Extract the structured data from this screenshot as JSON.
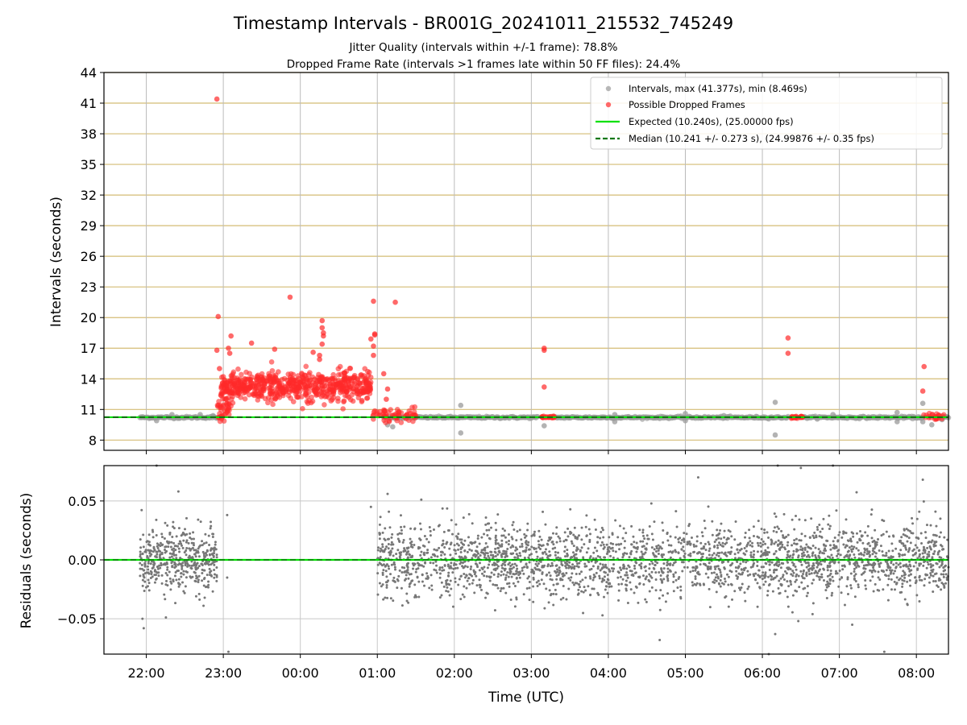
{
  "figure": {
    "title": "Timestamp Intervals - BR001G_20241011_215532_745249",
    "subtitle_line1": "Jitter Quality (intervals within +/-1 frame): 78.8%",
    "subtitle_line2": "Dropped Frame Rate (intervals >1 frames late within 50 FF files): 24.4%"
  },
  "chart_data": [
    {
      "type": "scatter",
      "panel": "top",
      "ylabel": "Intervals (seconds)",
      "ylim": [
        7,
        44
      ],
      "yticks": [
        8,
        11,
        14,
        17,
        20,
        23,
        26,
        29,
        32,
        35,
        38,
        41,
        44
      ],
      "ytick_labels": [
        "8",
        "11",
        "14",
        "17",
        "20",
        "23",
        "26",
        "29",
        "32",
        "35",
        "38",
        "41",
        "44"
      ],
      "xlim": [
        "21:27",
        "08:25"
      ],
      "grid": true,
      "horizontal_grid_color": "#d4bc74",
      "vertical_grid_color": "#bbbbbb",
      "legend_position": "top-right",
      "legend": [
        {
          "label": "Intervals, max (41.377s), min (8.469s)",
          "kind": "marker",
          "color": "#9a9a9a"
        },
        {
          "label": "Possible Dropped Frames",
          "kind": "marker",
          "color": "#ff2a2a"
        },
        {
          "label": "Expected (10.240s), (25.00000 fps)",
          "kind": "line",
          "color": "#00e000"
        },
        {
          "label": "Median (10.241 +/- 0.273 s), (24.99876 +/- 0.35 fps)",
          "kind": "dashed",
          "color": "#117711"
        }
      ],
      "expected_interval": 10.24,
      "median_interval": 10.241,
      "series": [
        {
          "name": "Intervals, max (41.377s), min (8.469s)",
          "color": "#9a9a9a",
          "segments": [
            [
              "21:55",
              "22:55",
              10.22
            ],
            [
              "01:05",
              "03:05",
              10.22
            ],
            [
              "03:18",
              "06:20",
              10.22
            ],
            [
              "06:32",
              "08:05",
              10.22
            ],
            [
              "08:20",
              "08:25",
              10.22
            ]
          ],
          "points": [
            [
              "22:08",
              9.9
            ],
            [
              "22:20",
              10.5
            ],
            [
              "22:42",
              10.5
            ],
            [
              "22:52",
              10.4
            ],
            [
              "01:08",
              9.5
            ],
            [
              "01:12",
              9.3
            ],
            [
              "01:15",
              10.4
            ],
            [
              "02:05",
              11.4
            ],
            [
              "02:05",
              8.7
            ],
            [
              "03:10",
              9.4
            ],
            [
              "04:05",
              9.8
            ],
            [
              "04:05",
              10.5
            ],
            [
              "05:00",
              9.9
            ],
            [
              "05:00",
              10.6
            ],
            [
              "05:30",
              10.4
            ],
            [
              "06:10",
              11.7
            ],
            [
              "06:10",
              8.5
            ],
            [
              "06:55",
              10.5
            ],
            [
              "07:45",
              10.7
            ],
            [
              "07:45",
              9.8
            ],
            [
              "08:05",
              11.6
            ],
            [
              "08:05",
              9.8
            ],
            [
              "08:12",
              9.5
            ],
            [
              "08:20",
              10.0
            ]
          ]
        },
        {
          "name": "Possible Dropped Frames",
          "color": "#ff2a2a",
          "clusters": [
            {
              "from": "22:58",
              "to": "00:55",
              "mean": 13.2,
              "spread": 0.75,
              "count": 620
            },
            {
              "from": "22:55",
              "to": "23:05",
              "mean": 11.0,
              "spread": 0.6,
              "count": 40
            },
            {
              "from": "00:55",
              "to": "01:30",
              "mean": 10.5,
              "spread": 0.35,
              "count": 60
            },
            {
              "from": "03:08",
              "to": "03:18",
              "mean": 10.25,
              "spread": 0.05,
              "count": 25
            },
            {
              "from": "06:22",
              "to": "06:32",
              "mean": 10.25,
              "spread": 0.05,
              "count": 25
            },
            {
              "from": "08:05",
              "to": "08:22",
              "mean": 10.3,
              "spread": 0.2,
              "count": 25
            }
          ],
          "points": [
            [
              "22:55",
              41.4
            ],
            [
              "22:56",
              20.1
            ],
            [
              "22:55",
              16.8
            ],
            [
              "22:57",
              15.0
            ],
            [
              "23:04",
              17.0
            ],
            [
              "23:06",
              18.2
            ],
            [
              "23:05",
              16.5
            ],
            [
              "23:22",
              17.5
            ],
            [
              "23:40",
              16.9
            ],
            [
              "23:52",
              22.0
            ],
            [
              "00:10",
              16.6
            ],
            [
              "00:15",
              16.3
            ],
            [
              "00:17",
              19.7
            ],
            [
              "00:17",
              19.0
            ],
            [
              "00:18",
              18.5
            ],
            [
              "00:18",
              18.2
            ],
            [
              "00:17",
              17.4
            ],
            [
              "00:15",
              15.9
            ],
            [
              "00:55",
              17.9
            ],
            [
              "00:58",
              18.4
            ],
            [
              "00:57",
              16.3
            ],
            [
              "00:57",
              21.6
            ],
            [
              "00:57",
              17.2
            ],
            [
              "00:58",
              18.3
            ],
            [
              "01:05",
              14.5
            ],
            [
              "01:08",
              13.0
            ],
            [
              "01:14",
              21.5
            ],
            [
              "01:07",
              12.0
            ],
            [
              "03:10",
              17.0
            ],
            [
              "03:10",
              16.8
            ],
            [
              "03:10",
              13.2
            ],
            [
              "06:20",
              18.0
            ],
            [
              "06:20",
              16.5
            ],
            [
              "08:06",
              15.2
            ],
            [
              "08:05",
              12.8
            ]
          ]
        }
      ]
    },
    {
      "type": "scatter",
      "panel": "bottom",
      "ylabel": "Residuals (seconds)",
      "xlabel": "Time (UTC)",
      "ylim": [
        -0.08,
        0.08
      ],
      "yticks": [
        -0.05,
        0.0,
        0.05
      ],
      "ytick_labels": [
        "−0.05",
        "0.00",
        "0.05"
      ],
      "xlim": [
        "21:27",
        "08:25"
      ],
      "xticks": [
        "22:00",
        "23:00",
        "00:00",
        "01:00",
        "02:00",
        "03:00",
        "04:00",
        "05:00",
        "06:00",
        "07:00",
        "08:00"
      ],
      "xtick_labels": [
        "22:00",
        "23:00",
        "00:00",
        "01:00",
        "02:00",
        "03:00",
        "04:00",
        "05:00",
        "06:00",
        "07:00",
        "08:00"
      ],
      "grid": true,
      "grid_color": "#c8c8c8",
      "zero_line_color": "#00e000",
      "series": [
        {
          "name": "",
          "color": "#777777",
          "clusters": [
            {
              "from": "21:55",
              "to": "22:55",
              "spread": 0.013,
              "count": 450
            },
            {
              "from": "01:00",
              "to": "08:25",
              "spread": 0.015,
              "count": 2600
            }
          ],
          "points": [
            [
              "22:08",
              0.08
            ],
            [
              "22:25",
              0.058
            ],
            [
              "21:57",
              -0.05
            ],
            [
              "21:58",
              -0.058
            ],
            [
              "23:04",
              -0.078
            ],
            [
              "23:03",
              0.038
            ],
            [
              "23:03",
              -0.015
            ],
            [
              "00:55",
              0.045
            ],
            [
              "01:08",
              0.056
            ],
            [
              "06:12",
              0.08
            ],
            [
              "06:10",
              -0.063
            ],
            [
              "06:28",
              -0.052
            ],
            [
              "06:30",
              0.078
            ],
            [
              "06:55",
              0.08
            ],
            [
              "07:10",
              -0.055
            ],
            [
              "07:35",
              -0.078
            ],
            [
              "08:05",
              0.068
            ],
            [
              "04:40",
              -0.068
            ],
            [
              "05:10",
              0.07
            ],
            [
              "06:05",
              -0.08
            ]
          ]
        }
      ]
    }
  ]
}
